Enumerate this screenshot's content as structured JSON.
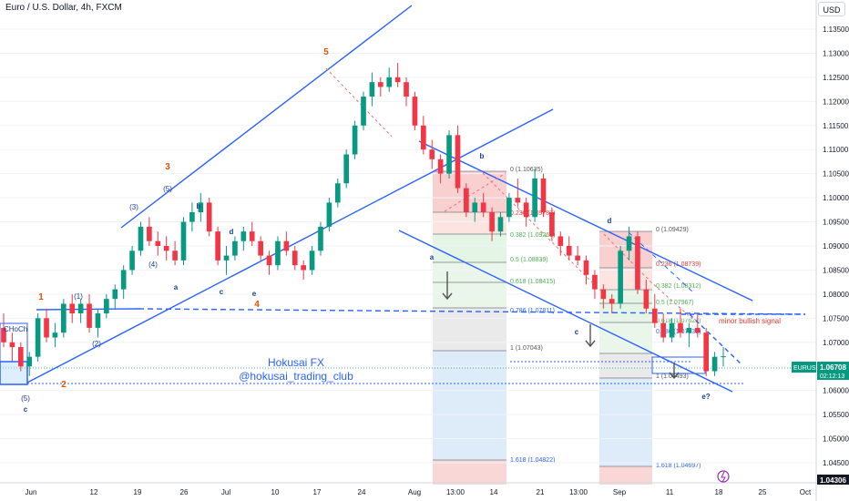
{
  "chart_data": {
    "type": "candlestick",
    "title": "Euro / U.S. Dollar, 4h, FXCM",
    "currency": "USD",
    "symbol": "EURUSD",
    "last_price": "1.06708",
    "countdown": "02:12:13",
    "low_box_price": "1.04306",
    "ylim": [
      1.042,
      1.137
    ],
    "y_ticks": [
      "1.13500",
      "1.13000",
      "1.12500",
      "1.12000",
      "1.11500",
      "1.11000",
      "1.10500",
      "1.10000",
      "1.09500",
      "1.09000",
      "1.08500",
      "1.08000",
      "1.07500",
      "1.07000",
      "1.06500",
      "1.06000",
      "1.05500",
      "1.05000",
      "1.04500"
    ],
    "x_ticks": [
      "Jun",
      "12",
      "19",
      "26",
      "Jul",
      "10",
      "17",
      "24",
      "Aug",
      "13:00",
      "14",
      "21",
      "13:00",
      "Sep",
      "11",
      "18",
      "25",
      "Oct"
    ],
    "watermark": [
      "Hokusai FX",
      "@hokusai_trading_club"
    ],
    "annotations": {
      "waves_orange": [
        "5",
        "3",
        "1",
        "4",
        "2"
      ],
      "waves_blue": [
        "(5)",
        "(3)",
        "(1)",
        "(4)",
        "(2)",
        "(5)",
        "c",
        "a",
        "b",
        "c",
        "d",
        "e",
        "a",
        "b",
        "c",
        "d",
        "e?"
      ],
      "choch": "CHoCh",
      "signal": "minor bullish signal"
    },
    "fib_left": [
      "0 (1.10635)",
      "0.236 (1.09787)",
      "0.382 (1.09263)",
      "0.5 (1.08839)",
      "0.618 (1.08415)",
      "0.786 (1.07811)",
      "1 (1.07043)",
      "1.618 (1.04822)"
    ],
    "fib_right": [
      "0 (1.09429)",
      "0.236 (1.08739)",
      "0.382 (1.08312)",
      "0.5 (1.07967)",
      "0.618 (1.07622)",
      "0.786 (1.07131)",
      "1 (1.06493)",
      "1.618 (1.04697)"
    ],
    "candles": [
      [
        1.073,
        1.076,
        1.069,
        1.07
      ],
      [
        1.07,
        1.072,
        1.066,
        1.069
      ],
      [
        1.069,
        1.07,
        1.064,
        1.065
      ],
      [
        1.065,
        1.068,
        1.063,
        1.067
      ],
      [
        1.067,
        1.076,
        1.066,
        1.075
      ],
      [
        1.075,
        1.077,
        1.07,
        1.071
      ],
      [
        1.071,
        1.074,
        1.069,
        1.072
      ],
      [
        1.072,
        1.079,
        1.071,
        1.078
      ],
      [
        1.078,
        1.08,
        1.074,
        1.076
      ],
      [
        1.076,
        1.079,
        1.074,
        1.078
      ],
      [
        1.078,
        1.08,
        1.072,
        1.073
      ],
      [
        1.073,
        1.077,
        1.071,
        1.076
      ],
      [
        1.076,
        1.08,
        1.075,
        1.079
      ],
      [
        1.079,
        1.082,
        1.077,
        1.081
      ],
      [
        1.081,
        1.086,
        1.079,
        1.085
      ],
      [
        1.085,
        1.09,
        1.084,
        1.089
      ],
      [
        1.089,
        1.095,
        1.088,
        1.094
      ],
      [
        1.094,
        1.096,
        1.09,
        1.091
      ],
      [
        1.091,
        1.093,
        1.088,
        1.09
      ],
      [
        1.09,
        1.092,
        1.087,
        1.089
      ],
      [
        1.089,
        1.091,
        1.086,
        1.087
      ],
      [
        1.087,
        1.096,
        1.086,
        1.095
      ],
      [
        1.095,
        1.099,
        1.093,
        1.097
      ],
      [
        1.097,
        1.101,
        1.095,
        1.099
      ],
      [
        1.099,
        1.1,
        1.092,
        1.093
      ],
      [
        1.093,
        1.094,
        1.086,
        1.087
      ],
      [
        1.087,
        1.09,
        1.084,
        1.088
      ],
      [
        1.088,
        1.092,
        1.087,
        1.091
      ],
      [
        1.091,
        1.094,
        1.089,
        1.093
      ],
      [
        1.093,
        1.095,
        1.09,
        1.091
      ],
      [
        1.091,
        1.092,
        1.087,
        1.088
      ],
      [
        1.088,
        1.089,
        1.084,
        1.086
      ],
      [
        1.086,
        1.092,
        1.085,
        1.091
      ],
      [
        1.091,
        1.093,
        1.088,
        1.089
      ],
      [
        1.089,
        1.09,
        1.085,
        1.086
      ],
      [
        1.086,
        1.087,
        1.083,
        1.085
      ],
      [
        1.085,
        1.09,
        1.084,
        1.089
      ],
      [
        1.089,
        1.095,
        1.088,
        1.094
      ],
      [
        1.094,
        1.1,
        1.093,
        1.099
      ],
      [
        1.099,
        1.104,
        1.098,
        1.103
      ],
      [
        1.103,
        1.11,
        1.102,
        1.109
      ],
      [
        1.109,
        1.116,
        1.108,
        1.115
      ],
      [
        1.115,
        1.122,
        1.114,
        1.121
      ],
      [
        1.121,
        1.126,
        1.119,
        1.124
      ],
      [
        1.124,
        1.125,
        1.121,
        1.123
      ],
      [
        1.123,
        1.127,
        1.122,
        1.125
      ],
      [
        1.125,
        1.128,
        1.123,
        1.124
      ],
      [
        1.124,
        1.125,
        1.119,
        1.121
      ],
      [
        1.121,
        1.122,
        1.114,
        1.115
      ],
      [
        1.115,
        1.117,
        1.109,
        1.11
      ],
      [
        1.11,
        1.112,
        1.106,
        1.108
      ],
      [
        1.108,
        1.109,
        1.103,
        1.105
      ],
      [
        1.105,
        1.114,
        1.104,
        1.113
      ],
      [
        1.113,
        1.115,
        1.101,
        1.102
      ],
      [
        1.102,
        1.103,
        1.096,
        1.097
      ],
      [
        1.097,
        1.1,
        1.095,
        1.099
      ],
      [
        1.099,
        1.101,
        1.096,
        1.097
      ],
      [
        1.097,
        1.098,
        1.091,
        1.093
      ],
      [
        1.093,
        1.097,
        1.092,
        1.096
      ],
      [
        1.096,
        1.101,
        1.095,
        1.1
      ],
      [
        1.1,
        1.104,
        1.098,
        1.099
      ],
      [
        1.099,
        1.1,
        1.094,
        1.096
      ],
      [
        1.096,
        1.106,
        1.095,
        1.104
      ],
      [
        1.104,
        1.105,
        1.096,
        1.097
      ],
      [
        1.097,
        1.098,
        1.091,
        1.092
      ],
      [
        1.092,
        1.093,
        1.088,
        1.09
      ],
      [
        1.09,
        1.092,
        1.087,
        1.088
      ],
      [
        1.088,
        1.09,
        1.086,
        1.087
      ],
      [
        1.087,
        1.088,
        1.082,
        1.084
      ],
      [
        1.084,
        1.085,
        1.079,
        1.081
      ],
      [
        1.081,
        1.082,
        1.077,
        1.079
      ],
      [
        1.079,
        1.08,
        1.076,
        1.078
      ],
      [
        1.078,
        1.09,
        1.077,
        1.089
      ],
      [
        1.089,
        1.094,
        1.087,
        1.092
      ],
      [
        1.092,
        1.093,
        1.08,
        1.081
      ],
      [
        1.081,
        1.083,
        1.076,
        1.077
      ],
      [
        1.077,
        1.08,
        1.073,
        1.074
      ],
      [
        1.074,
        1.076,
        1.07,
        1.071
      ],
      [
        1.071,
        1.075,
        1.07,
        1.074
      ],
      [
        1.074,
        1.077,
        1.071,
        1.072
      ],
      [
        1.072,
        1.074,
        1.069,
        1.073
      ],
      [
        1.073,
        1.076,
        1.071,
        1.072
      ],
      [
        1.072,
        1.073,
        1.063,
        1.064
      ],
      [
        1.064,
        1.068,
        1.063,
        1.067
      ],
      [
        1.067,
        1.069,
        1.065,
        1.0671
      ]
    ]
  }
}
